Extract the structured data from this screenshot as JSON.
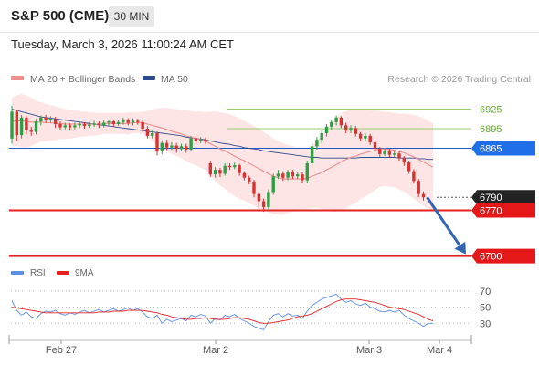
{
  "header": {
    "title": "S&P 500 (CME)",
    "timeframe": "30 MIN",
    "datetime": "Tuesday, March 3, 2026 11:00:24 AM CET"
  },
  "legend": {
    "ma20_label": "MA 20 + Bollinger Bands",
    "ma50_label": "MA 50",
    "copyright": "Research © 2026 Trading Central",
    "rsi_label": "RSI",
    "ma9_label": "9MA"
  },
  "colors": {
    "ma20": "#f08c8c",
    "ma50": "#2e4d8f",
    "band_fill": "#fde1e1",
    "up_candle": "#2f9e44",
    "down_candle": "#d63333",
    "line_green": "#9acd6f",
    "line_blue": "#1e5bc6",
    "line_red": "#e52222",
    "label_blue": "#1e6fe8",
    "label_red": "#e41818",
    "label_black": "#222222",
    "rsi": "#5b8ee6",
    "rsi_ma": "#e52222",
    "arrow": "#3264b0"
  },
  "chart_data": [
    {
      "type": "candlestick",
      "title": "S&P 500 (CME) 30 MIN",
      "x_tick_labels": [
        "Feb 27",
        "Mar 2",
        "Mar 3",
        "Mar 4"
      ],
      "y_range": [
        6687,
        6955
      ],
      "levels": [
        {
          "value": 6925,
          "label": "6925",
          "style": "resistance"
        },
        {
          "value": 6895,
          "label": "6895",
          "style": "resistance"
        },
        {
          "value": 6865,
          "label": "6865",
          "style": "pivot"
        },
        {
          "value": 6790,
          "label": "6790",
          "style": "last"
        },
        {
          "value": 6770,
          "label": "6770",
          "style": "support"
        },
        {
          "value": 6700,
          "label": "6700",
          "style": "target"
        }
      ],
      "candles": [
        {
          "o": 6880,
          "c": 6921,
          "h": 6930,
          "l": 6872
        },
        {
          "o": 6921,
          "c": 6885,
          "h": 6924,
          "l": 6876
        },
        {
          "o": 6885,
          "c": 6912,
          "h": 6916,
          "l": 6880
        },
        {
          "o": 6912,
          "c": 6892,
          "h": 6915,
          "l": 6886
        },
        {
          "o": 6892,
          "c": 6890,
          "h": 6898,
          "l": 6884
        },
        {
          "o": 6890,
          "c": 6906,
          "h": 6910,
          "l": 6886
        },
        {
          "o": 6906,
          "c": 6912,
          "h": 6915,
          "l": 6900
        },
        {
          "o": 6912,
          "c": 6908,
          "h": 6916,
          "l": 6904
        },
        {
          "o": 6908,
          "c": 6910,
          "h": 6914,
          "l": 6904
        },
        {
          "o": 6910,
          "c": 6902,
          "h": 6913,
          "l": 6896
        },
        {
          "o": 6902,
          "c": 6897,
          "h": 6906,
          "l": 6892
        },
        {
          "o": 6897,
          "c": 6900,
          "h": 6904,
          "l": 6894
        },
        {
          "o": 6900,
          "c": 6897,
          "h": 6903,
          "l": 6892
        },
        {
          "o": 6897,
          "c": 6900,
          "h": 6904,
          "l": 6894
        },
        {
          "o": 6900,
          "c": 6902,
          "h": 6906,
          "l": 6896
        },
        {
          "o": 6902,
          "c": 6899,
          "h": 6905,
          "l": 6895
        },
        {
          "o": 6899,
          "c": 6901,
          "h": 6905,
          "l": 6896
        },
        {
          "o": 6901,
          "c": 6903,
          "h": 6907,
          "l": 6898
        },
        {
          "o": 6903,
          "c": 6900,
          "h": 6906,
          "l": 6896
        },
        {
          "o": 6900,
          "c": 6904,
          "h": 6908,
          "l": 6897
        },
        {
          "o": 6904,
          "c": 6906,
          "h": 6909,
          "l": 6900
        },
        {
          "o": 6906,
          "c": 6902,
          "h": 6909,
          "l": 6898
        },
        {
          "o": 6902,
          "c": 6905,
          "h": 6909,
          "l": 6899
        },
        {
          "o": 6905,
          "c": 6908,
          "h": 6912,
          "l": 6901
        },
        {
          "o": 6908,
          "c": 6904,
          "h": 6911,
          "l": 6900
        },
        {
          "o": 6904,
          "c": 6907,
          "h": 6911,
          "l": 6900
        },
        {
          "o": 6907,
          "c": 6905,
          "h": 6910,
          "l": 6901
        },
        {
          "o": 6905,
          "c": 6895,
          "h": 6908,
          "l": 6890
        },
        {
          "o": 6895,
          "c": 6884,
          "h": 6899,
          "l": 6880
        },
        {
          "o": 6884,
          "c": 6888,
          "h": 6892,
          "l": 6880
        },
        {
          "o": 6888,
          "c": 6860,
          "h": 6891,
          "l": 6854
        },
        {
          "o": 6860,
          "c": 6873,
          "h": 6877,
          "l": 6856
        },
        {
          "o": 6873,
          "c": 6866,
          "h": 6878,
          "l": 6862
        },
        {
          "o": 6866,
          "c": 6869,
          "h": 6874,
          "l": 6862
        },
        {
          "o": 6869,
          "c": 6864,
          "h": 6873,
          "l": 6858
        },
        {
          "o": 6864,
          "c": 6868,
          "h": 6872,
          "l": 6860
        },
        {
          "o": 6868,
          "c": 6863,
          "h": 6872,
          "l": 6858
        },
        {
          "o": 6863,
          "c": 6880,
          "h": 6884,
          "l": 6861
        },
        {
          "o": 6880,
          "c": 6876,
          "h": 6884,
          "l": 6872
        },
        {
          "o": 6876,
          "c": 6878,
          "h": 6882,
          "l": 6873
        },
        {
          "o": 6878,
          "c": 6875,
          "h": 6882,
          "l": 6871
        },
        {
          "o": 6842,
          "c": 6825,
          "h": 6846,
          "l": 6821
        },
        {
          "o": 6825,
          "c": 6832,
          "h": 6836,
          "l": 6820
        },
        {
          "o": 6832,
          "c": 6826,
          "h": 6835,
          "l": 6821
        },
        {
          "o": 6826,
          "c": 6838,
          "h": 6842,
          "l": 6823
        },
        {
          "o": 6838,
          "c": 6836,
          "h": 6842,
          "l": 6832
        },
        {
          "o": 6836,
          "c": 6839,
          "h": 6843,
          "l": 6833
        },
        {
          "o": 6839,
          "c": 6827,
          "h": 6841,
          "l": 6823
        },
        {
          "o": 6827,
          "c": 6820,
          "h": 6830,
          "l": 6816
        },
        {
          "o": 6820,
          "c": 6814,
          "h": 6823,
          "l": 6810
        },
        {
          "o": 6814,
          "c": 6795,
          "h": 6817,
          "l": 6790
        },
        {
          "o": 6795,
          "c": 6784,
          "h": 6798,
          "l": 6772
        },
        {
          "o": 6784,
          "c": 6775,
          "h": 6788,
          "l": 6768
        },
        {
          "o": 6775,
          "c": 6798,
          "h": 6802,
          "l": 6770
        },
        {
          "o": 6798,
          "c": 6822,
          "h": 6826,
          "l": 6794
        },
        {
          "o": 6822,
          "c": 6826,
          "h": 6832,
          "l": 6818
        },
        {
          "o": 6826,
          "c": 6820,
          "h": 6830,
          "l": 6815
        },
        {
          "o": 6820,
          "c": 6828,
          "h": 6832,
          "l": 6816
        },
        {
          "o": 6828,
          "c": 6822,
          "h": 6832,
          "l": 6818
        },
        {
          "o": 6822,
          "c": 6825,
          "h": 6829,
          "l": 6818
        },
        {
          "o": 6825,
          "c": 6816,
          "h": 6828,
          "l": 6812
        },
        {
          "o": 6816,
          "c": 6842,
          "h": 6846,
          "l": 6812
        },
        {
          "o": 6842,
          "c": 6868,
          "h": 6872,
          "l": 6838
        },
        {
          "o": 6868,
          "c": 6878,
          "h": 6882,
          "l": 6863
        },
        {
          "o": 6878,
          "c": 6888,
          "h": 6892,
          "l": 6872
        },
        {
          "o": 6888,
          "c": 6898,
          "h": 6902,
          "l": 6883
        },
        {
          "o": 6898,
          "c": 6905,
          "h": 6908,
          "l": 6893
        },
        {
          "o": 6905,
          "c": 6912,
          "h": 6915,
          "l": 6900
        },
        {
          "o": 6912,
          "c": 6900,
          "h": 6914,
          "l": 6896
        },
        {
          "o": 6900,
          "c": 6892,
          "h": 6904,
          "l": 6888
        },
        {
          "o": 6892,
          "c": 6896,
          "h": 6900,
          "l": 6888
        },
        {
          "o": 6896,
          "c": 6887,
          "h": 6899,
          "l": 6883
        },
        {
          "o": 6887,
          "c": 6880,
          "h": 6890,
          "l": 6876
        },
        {
          "o": 6880,
          "c": 6884,
          "h": 6888,
          "l": 6876
        },
        {
          "o": 6884,
          "c": 6874,
          "h": 6887,
          "l": 6870
        },
        {
          "o": 6874,
          "c": 6864,
          "h": 6877,
          "l": 6860
        },
        {
          "o": 6864,
          "c": 6856,
          "h": 6867,
          "l": 6852
        },
        {
          "o": 6856,
          "c": 6860,
          "h": 6864,
          "l": 6853
        },
        {
          "o": 6860,
          "c": 6855,
          "h": 6864,
          "l": 6851
        },
        {
          "o": 6855,
          "c": 6857,
          "h": 6861,
          "l": 6852
        },
        {
          "o": 6857,
          "c": 6850,
          "h": 6860,
          "l": 6846
        },
        {
          "o": 6850,
          "c": 6843,
          "h": 6853,
          "l": 6838
        },
        {
          "o": 6843,
          "c": 6830,
          "h": 6846,
          "l": 6826
        },
        {
          "o": 6830,
          "c": 6815,
          "h": 6833,
          "l": 6811
        },
        {
          "o": 6815,
          "c": 6795,
          "h": 6818,
          "l": 6790
        },
        {
          "o": 6795,
          "c": 6790,
          "h": 6799,
          "l": 6785
        }
      ],
      "ma20": [
        6906,
        6907,
        6907,
        6906,
        6905,
        6905,
        6905,
        6904,
        6904,
        6903,
        6903,
        6902,
        6902,
        6902,
        6902,
        6902,
        6902,
        6902,
        6902,
        6903,
        6903,
        6903,
        6903,
        6903,
        6903,
        6904,
        6904,
        6904,
        6902,
        6900,
        6898,
        6896,
        6894,
        6891,
        6889,
        6887,
        6884,
        6882,
        6880,
        6878,
        6876,
        6872,
        6868,
        6864,
        6861,
        6857,
        6853,
        6849,
        6846,
        6842,
        6838,
        6834,
        6830,
        6826,
        6822,
        6820,
        6818,
        6818,
        6818,
        6818,
        6818,
        6819,
        6822,
        6825,
        6828,
        6832,
        6836,
        6840,
        6844,
        6848,
        6851,
        6853,
        6856,
        6858,
        6860,
        6862,
        6864,
        6864,
        6863,
        6862,
        6860,
        6858,
        6855,
        6852,
        6848,
        6844,
        6840,
        6836
      ],
      "band_upper": [
        6942,
        6946,
        6948,
        6946,
        6942,
        6938,
        6935,
        6933,
        6931,
        6929,
        6927,
        6925,
        6924,
        6923,
        6922,
        6921,
        6920,
        6920,
        6919,
        6919,
        6919,
        6919,
        6919,
        6919,
        6920,
        6920,
        6920,
        6921,
        6922,
        6924,
        6926,
        6927,
        6927,
        6926,
        6925,
        6924,
        6923,
        6922,
        6921,
        6921,
        6920,
        6921,
        6921,
        6920,
        6919,
        6917,
        6914,
        6911,
        6907,
        6903,
        6899,
        6895,
        6890,
        6885,
        6880,
        6876,
        6873,
        6870,
        6868,
        6866,
        6866,
        6866,
        6870,
        6876,
        6884,
        6894,
        6904,
        6912,
        6918,
        6922,
        6924,
        6925,
        6925,
        6925,
        6924,
        6923,
        6922,
        6921,
        6920,
        6919,
        6918,
        6918,
        6917,
        6916,
        6914,
        6911,
        6907,
        6903
      ],
      "band_lower": [
        6870,
        6868,
        6866,
        6866,
        6868,
        6872,
        6875,
        6875,
        6877,
        6877,
        6879,
        6879,
        6880,
        6881,
        6882,
        6883,
        6884,
        6884,
        6885,
        6887,
        6887,
        6887,
        6887,
        6887,
        6886,
        6888,
        6888,
        6887,
        6882,
        6876,
        6870,
        6865,
        6861,
        6856,
        6853,
        6850,
        6845,
        6842,
        6839,
        6835,
        6832,
        6823,
        6815,
        6808,
        6803,
        6797,
        6792,
        6787,
        6785,
        6781,
        6777,
        6773,
        6770,
        6767,
        6764,
        6764,
        6763,
        6766,
        6768,
        6770,
        6770,
        6772,
        6774,
        6774,
        6772,
        6770,
        6768,
        6768,
        6770,
        6774,
        6778,
        6781,
        6787,
        6791,
        6796,
        6801,
        6806,
        6807,
        6806,
        6805,
        6802,
        6798,
        6793,
        6788,
        6782,
        6777,
        6773,
        6769
      ],
      "ma50": [
        6925,
        6923,
        6921,
        6919,
        6917,
        6915,
        6913,
        6912,
        6911,
        6910,
        6909,
        6908,
        6907,
        6906,
        6905,
        6904,
        6903,
        6902,
        6901,
        6900,
        6899,
        6898,
        6897,
        6896,
        6895,
        6894,
        6893,
        6892,
        6891,
        6890,
        6889,
        6888,
        6887,
        6886,
        6885,
        6884,
        6882,
        6881,
        6880,
        6879,
        6878,
        6876,
        6875,
        6873,
        6872,
        6871,
        6869,
        6868,
        6866,
        6865,
        6864,
        6863,
        6861,
        6860,
        6859,
        6858,
        6857,
        6856,
        6855,
        6854,
        6853,
        6852,
        6851,
        6851,
        6850,
        6850,
        6850,
        6850,
        6850,
        6850,
        6850,
        6850,
        6851,
        6851,
        6851,
        6851,
        6851,
        6851,
        6851,
        6851,
        6850,
        6850,
        6850,
        6850,
        6849,
        6849,
        6848,
        6848
      ]
    },
    {
      "type": "line",
      "title": "RSI",
      "y_range": [
        10,
        80
      ],
      "y_ticks": [
        70,
        50,
        30
      ],
      "x_tick_labels": [
        "Feb 27",
        "Mar 2",
        "Mar 3",
        "Mar 4"
      ],
      "series": [
        {
          "name": "RSI",
          "values": [
            58,
            46,
            40,
            44,
            38,
            36,
            42,
            45,
            44,
            46,
            42,
            40,
            43,
            41,
            44,
            46,
            43,
            45,
            47,
            44,
            46,
            48,
            45,
            47,
            49,
            46,
            48,
            44,
            38,
            36,
            40,
            30,
            35,
            32,
            34,
            36,
            33,
            40,
            38,
            41,
            39,
            30,
            36,
            34,
            40,
            38,
            41,
            36,
            33,
            30,
            26,
            24,
            22,
            32,
            40,
            42,
            38,
            42,
            39,
            40,
            36,
            45,
            52,
            56,
            60,
            62,
            64,
            66,
            60,
            56,
            58,
            54,
            52,
            55,
            50,
            48,
            45,
            44,
            46,
            44,
            46,
            40,
            36,
            33,
            30,
            26,
            30,
            30
          ]
        },
        {
          "name": "9MA",
          "values": [
            50,
            49,
            48,
            47,
            46,
            45,
            44,
            43,
            43,
            43,
            43,
            43,
            43,
            43,
            43,
            43,
            43,
            43,
            44,
            44,
            44,
            45,
            45,
            45,
            46,
            46,
            46,
            46,
            45,
            44,
            43,
            41,
            40,
            38,
            37,
            36,
            35,
            35,
            36,
            36,
            37,
            36,
            35,
            35,
            35,
            36,
            37,
            37,
            36,
            35,
            33,
            31,
            30,
            30,
            31,
            32,
            33,
            34,
            36,
            38,
            39,
            40,
            42,
            45,
            48,
            51,
            54,
            57,
            59,
            60,
            60,
            60,
            59,
            58,
            57,
            56,
            54,
            52,
            50,
            49,
            48,
            47,
            45,
            43,
            41,
            38,
            35,
            33
          ]
        }
      ]
    }
  ]
}
